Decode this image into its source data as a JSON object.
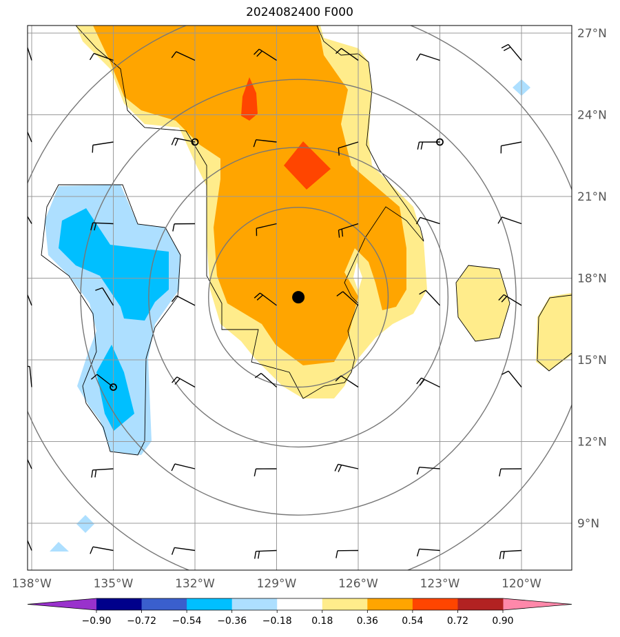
{
  "title": "2024082400 F000",
  "map": {
    "lon_range": [
      -138.5,
      -118.5
    ],
    "lat_range": [
      7.5,
      27.2
    ],
    "lat_labels": [
      "27°N",
      "24°N",
      "21°N",
      "18°N",
      "15°N",
      "12°N",
      "9°N"
    ],
    "lat_values": [
      27,
      24,
      21,
      18,
      15,
      12,
      9
    ],
    "lon_labels": [
      "138°W",
      "135°W",
      "132°W",
      "129°W",
      "126°W",
      "123°W",
      "120°W"
    ],
    "lon_values": [
      -138,
      -135,
      -132,
      -129,
      -126,
      -123,
      -120
    ],
    "storm_center": {
      "lon": -128.2,
      "lat": 17.3
    },
    "low_centers": [
      {
        "lon": -132.0,
        "lat": 23.0
      },
      {
        "lon": -123.0,
        "lat": 23.0
      },
      {
        "lon": -135.0,
        "lat": 14.0
      }
    ],
    "range_rings_deg": [
      3.3,
      5.5,
      8.0
    ]
  },
  "colorbar": {
    "ticks": [
      "−0.90",
      "−0.72",
      "−0.54",
      "−0.36",
      "−0.18",
      "0.18",
      "0.36",
      "0.54",
      "0.72",
      "0.90"
    ],
    "colors": [
      "#9932CC",
      "#00008B",
      "#3A5FCD",
      "#00BFFF",
      "#ADDFFF",
      "#FFFFFF",
      "#FFEC8B",
      "#FFA500",
      "#FF4500",
      "#B22222",
      "#FF88AA"
    ]
  },
  "colors": {
    "light_yellow": "#FFEC8B",
    "orange": "#FFA500",
    "red_orange": "#FF4500",
    "light_blue": "#ADDFFF",
    "blue": "#00BFFF",
    "grid": "#999999",
    "ring": "#777777"
  }
}
